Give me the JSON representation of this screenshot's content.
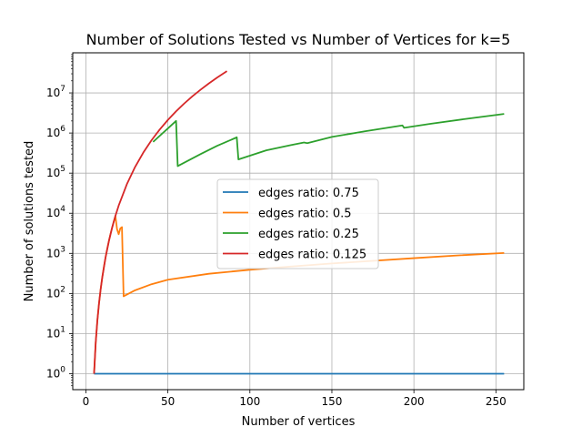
{
  "chart_data": {
    "type": "line",
    "title": "Number of Solutions Tested vs Number of Vertices for k=5",
    "xlabel": "Number of vertices",
    "ylabel": "Number of solutions tested",
    "xlim": [
      -8,
      267
    ],
    "ylim": [
      0.4,
      100000000
    ],
    "yscale": "log",
    "grid": true,
    "legend_position": "center",
    "xticks": [
      0,
      50,
      100,
      150,
      200,
      250
    ],
    "xtick_labels": [
      "0",
      "50",
      "100",
      "150",
      "200",
      "250"
    ],
    "yticks": [
      1,
      10,
      100,
      1000,
      10000,
      100000,
      1000000,
      10000000
    ],
    "ytick_labels": [
      "10^0",
      "10^1",
      "10^2",
      "10^3",
      "10^4",
      "10^5",
      "10^6",
      "10^7"
    ],
    "series": [
      {
        "name": "edges ratio: 0.75",
        "color": "#1f77b4",
        "points": [
          [
            5,
            1
          ],
          [
            255,
            1
          ]
        ]
      },
      {
        "name": "edges ratio: 0.5",
        "color": "#ff7f0e",
        "points": [
          [
            5,
            1
          ],
          [
            6,
            6
          ],
          [
            7,
            21
          ],
          [
            8,
            56
          ],
          [
            9,
            126
          ],
          [
            10,
            252
          ],
          [
            11,
            462
          ],
          [
            12,
            792
          ],
          [
            13,
            1287
          ],
          [
            14,
            2002
          ],
          [
            15,
            3003
          ],
          [
            16,
            4368
          ],
          [
            17,
            6188
          ],
          [
            18,
            8568
          ],
          [
            19,
            4000
          ],
          [
            20,
            3000
          ],
          [
            21,
            4200
          ],
          [
            22,
            4500
          ],
          [
            23,
            85
          ],
          [
            30,
            120
          ],
          [
            40,
            170
          ],
          [
            50,
            220
          ],
          [
            75,
            310
          ],
          [
            100,
            390
          ],
          [
            125,
            470
          ],
          [
            150,
            560
          ],
          [
            175,
            650
          ],
          [
            200,
            760
          ],
          [
            225,
            880
          ],
          [
            255,
            1020
          ]
        ]
      },
      {
        "name": "edges ratio: 0.25",
        "color": "#2ca02c",
        "points": [
          [
            41,
            600000
          ],
          [
            45,
            850000
          ],
          [
            50,
            1300000
          ],
          [
            55,
            2000000
          ],
          [
            56,
            150000
          ],
          [
            70,
            300000
          ],
          [
            80,
            480000
          ],
          [
            92,
            780000
          ],
          [
            93,
            220000
          ],
          [
            110,
            370000
          ],
          [
            125,
            500000
          ],
          [
            133,
            580000
          ],
          [
            135,
            560000
          ],
          [
            150,
            800000
          ],
          [
            170,
            1100000
          ],
          [
            193,
            1550000
          ],
          [
            194,
            1350000
          ],
          [
            210,
            1700000
          ],
          [
            230,
            2200000
          ],
          [
            255,
            3000000
          ]
        ]
      },
      {
        "name": "edges ratio: 0.125",
        "color": "#d62728",
        "points": [
          [
            5,
            1
          ],
          [
            6,
            6
          ],
          [
            7,
            21
          ],
          [
            8,
            56
          ],
          [
            9,
            126
          ],
          [
            10,
            252
          ],
          [
            12,
            792
          ],
          [
            14,
            2002
          ],
          [
            16,
            4368
          ],
          [
            18,
            8568
          ],
          [
            20,
            15504
          ],
          [
            25,
            53130
          ],
          [
            30,
            142506
          ],
          [
            35,
            324632
          ],
          [
            40,
            658008
          ],
          [
            45,
            1221759
          ],
          [
            50,
            2118760
          ],
          [
            55,
            3478761
          ],
          [
            60,
            5461512
          ],
          [
            65,
            8259888
          ],
          [
            70,
            12103014
          ],
          [
            75,
            17259390
          ],
          [
            80,
            24040016
          ],
          [
            86,
            34826302
          ]
        ]
      }
    ]
  }
}
